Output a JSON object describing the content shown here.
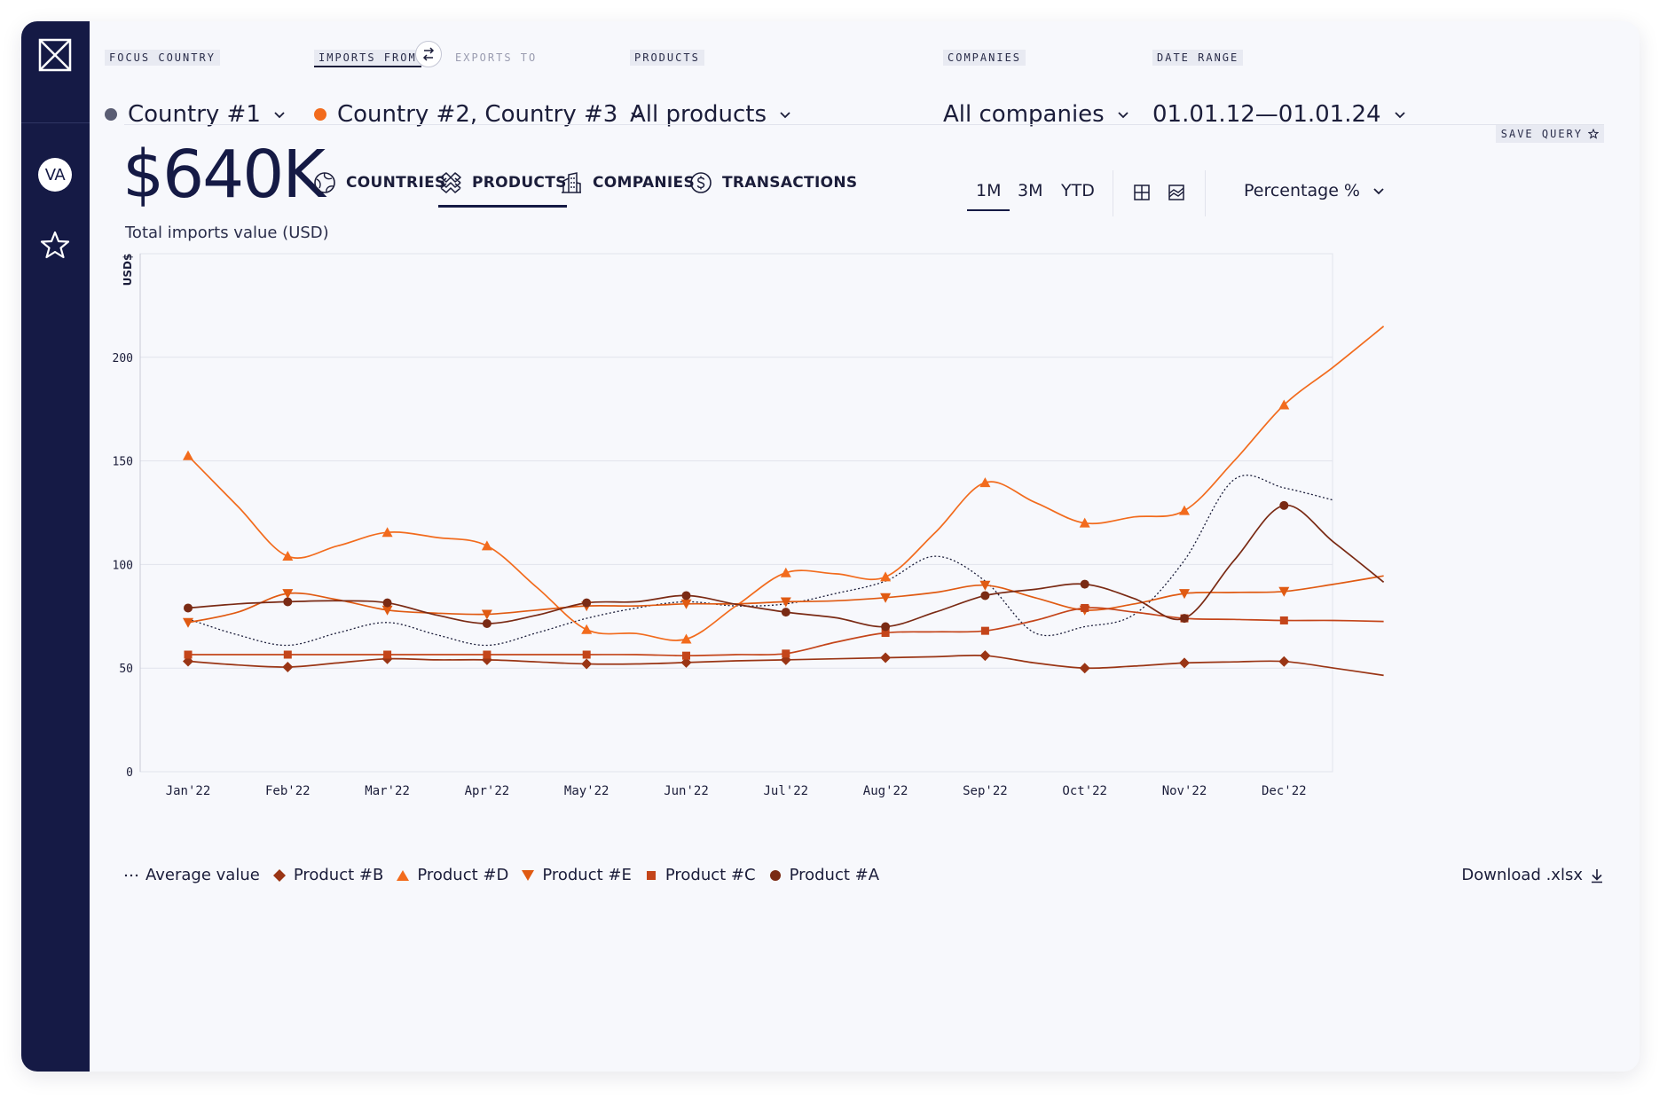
{
  "sidebar": {
    "avatar_initials": "VA",
    "logo_icon": "x-box-logo-icon",
    "favorites_icon": "star-icon"
  },
  "filters": {
    "focus_country": {
      "label": "FOCUS COUNTRY",
      "value": "Country #1",
      "dot_color": "#5a5d73"
    },
    "imports_from": {
      "label": "IMPORTS FROM",
      "value": "Country #2, Country #3",
      "dot_color": "#f26b1d"
    },
    "exports_to": {
      "label": "EXPORTS TO"
    },
    "products": {
      "label": "PRODUCTS",
      "value": "All products"
    },
    "companies": {
      "label": "COMPANIES",
      "value": "All companies"
    },
    "date_range": {
      "label": "DATE RANGE",
      "value": "01.01.12—01.01.24"
    }
  },
  "save_query": "SAVE QUERY",
  "summary": {
    "value": "$640K",
    "caption": "Total imports value (USD)"
  },
  "tabs": [
    {
      "label": "COUNTRIES",
      "icon": "globe-icon"
    },
    {
      "label": "PRODUCTS",
      "icon": "layers-icon",
      "active": true
    },
    {
      "label": "COMPANIES",
      "icon": "building-icon"
    },
    {
      "label": "TRANSACTIONS",
      "icon": "dollar-circle-icon"
    }
  ],
  "ranges": [
    "1M",
    "3M",
    "YTD"
  ],
  "active_range": "1M",
  "view_icons": [
    "table-view-icon",
    "area-chart-view-icon"
  ],
  "unit_select": "Percentage %",
  "download": "Download .xlsx",
  "colors": {
    "accent": "#f26b1d",
    "navy": "#151a45",
    "product_a": "#7a2a14",
    "product_b": "#9a3515",
    "product_c": "#c4451a",
    "product_d": "#f26b1d",
    "product_e": "#e05a12",
    "average": "#1b1d3a"
  },
  "chart_data": {
    "type": "line",
    "ylabel": "USD$",
    "ylim": [
      0,
      250
    ],
    "yticks": [
      0,
      50,
      100,
      150,
      200
    ],
    "grid": true,
    "legend_position": "bottom-left",
    "categories": [
      "Jan'22",
      "Feb'22",
      "Mar'22",
      "Apr'22",
      "May'22",
      "Jun'22",
      "Jul'22",
      "Aug'22",
      "Sep'22",
      "Oct'22",
      "Nov'22",
      "Dec'22"
    ],
    "series": [
      {
        "name": "Average value",
        "style": "dotted",
        "marker": "none",
        "color": "#1b1d3a",
        "points": [
          [
            0,
            73.7
          ],
          [
            0.5,
            66
          ],
          [
            1,
            61
          ],
          [
            1.5,
            67
          ],
          [
            2,
            72
          ],
          [
            2.5,
            66
          ],
          [
            3,
            61
          ],
          [
            3.5,
            67
          ],
          [
            4,
            74
          ],
          [
            4.5,
            79
          ],
          [
            5,
            82
          ],
          [
            5.5,
            80
          ],
          [
            6,
            81
          ],
          [
            6.5,
            86
          ],
          [
            7,
            92
          ],
          [
            7.5,
            104
          ],
          [
            8,
            92
          ],
          [
            8.5,
            67
          ],
          [
            9,
            70
          ],
          [
            9.5,
            76
          ],
          [
            10,
            102
          ],
          [
            10.5,
            141
          ],
          [
            11,
            137
          ],
          [
            11.5,
            131
          ]
        ]
      },
      {
        "name": "Product #B",
        "marker": "diamond",
        "color": "#9a3515",
        "points": [
          [
            0,
            53.3
          ],
          [
            0.5,
            51.5
          ],
          [
            1,
            50.5
          ],
          [
            1.5,
            52.5
          ],
          [
            2,
            54.5
          ],
          [
            2.5,
            54
          ],
          [
            3,
            54
          ],
          [
            3.5,
            53
          ],
          [
            4,
            52
          ],
          [
            4.5,
            52
          ],
          [
            5,
            52.7
          ],
          [
            5.5,
            53.5
          ],
          [
            6,
            54
          ],
          [
            6.5,
            54.5
          ],
          [
            7,
            55
          ],
          [
            7.5,
            55.5
          ],
          [
            8,
            56
          ],
          [
            8.5,
            52.5
          ],
          [
            9,
            50
          ],
          [
            9.5,
            51
          ],
          [
            10,
            52.5
          ],
          [
            10.5,
            53
          ],
          [
            11,
            53.2
          ],
          [
            11.5,
            50
          ],
          [
            12,
            46.5
          ]
        ]
      },
      {
        "name": "Product #D",
        "marker": "triangle-up",
        "color": "#f26b1d",
        "points": [
          [
            0,
            152.5
          ],
          [
            0.5,
            128
          ],
          [
            1,
            104
          ],
          [
            1.5,
            109
          ],
          [
            2,
            115.5
          ],
          [
            2.5,
            113
          ],
          [
            3,
            109
          ],
          [
            3.5,
            89
          ],
          [
            4,
            68.6
          ],
          [
            4.5,
            66.7
          ],
          [
            5,
            64
          ],
          [
            5.5,
            80
          ],
          [
            6,
            96
          ],
          [
            6.5,
            95.5
          ],
          [
            7,
            94
          ],
          [
            7.5,
            115.5
          ],
          [
            8,
            139.5
          ],
          [
            8.5,
            130
          ],
          [
            9,
            120
          ],
          [
            9.5,
            123
          ],
          [
            10,
            126
          ],
          [
            10.5,
            150
          ],
          [
            11,
            177
          ],
          [
            11.5,
            195.5
          ],
          [
            12,
            215
          ]
        ]
      },
      {
        "name": "Product #E",
        "marker": "triangle-down",
        "color": "#e05a12",
        "points": [
          [
            0,
            72
          ],
          [
            0.5,
            77
          ],
          [
            1,
            86
          ],
          [
            1.5,
            83
          ],
          [
            2,
            78
          ],
          [
            2.5,
            76.5
          ],
          [
            3,
            76
          ],
          [
            3.5,
            78
          ],
          [
            4,
            80
          ],
          [
            4.5,
            80
          ],
          [
            5,
            81
          ],
          [
            5.5,
            81
          ],
          [
            6,
            82
          ],
          [
            6.5,
            82.5
          ],
          [
            7,
            84
          ],
          [
            7.5,
            86.5
          ],
          [
            8,
            90
          ],
          [
            8.5,
            84
          ],
          [
            9,
            78
          ],
          [
            9.5,
            81
          ],
          [
            10,
            86
          ],
          [
            10.5,
            86.5
          ],
          [
            11,
            87
          ],
          [
            11.5,
            90.5
          ],
          [
            12,
            94.5
          ]
        ]
      },
      {
        "name": "Product #C",
        "marker": "square",
        "color": "#c4451a",
        "points": [
          [
            0,
            56.5
          ],
          [
            0.5,
            56.5
          ],
          [
            1,
            56.5
          ],
          [
            1.5,
            56.5
          ],
          [
            2,
            56.5
          ],
          [
            2.5,
            56.5
          ],
          [
            3,
            56.5
          ],
          [
            3.5,
            56.5
          ],
          [
            4,
            56.5
          ],
          [
            4.5,
            56.5
          ],
          [
            5,
            56
          ],
          [
            5.5,
            56.5
          ],
          [
            6,
            57
          ],
          [
            6.5,
            62.5
          ],
          [
            7,
            67
          ],
          [
            7.5,
            67.5
          ],
          [
            8,
            68
          ],
          [
            8.5,
            73
          ],
          [
            9,
            79
          ],
          [
            9.5,
            77
          ],
          [
            10,
            74
          ],
          [
            10.5,
            73.5
          ],
          [
            11,
            73
          ],
          [
            11.5,
            73
          ],
          [
            12,
            72.5
          ]
        ]
      },
      {
        "name": "Product #A",
        "marker": "circle",
        "color": "#7a2a14",
        "points": [
          [
            0,
            79
          ],
          [
            0.5,
            81
          ],
          [
            1,
            82
          ],
          [
            1.5,
            82.5
          ],
          [
            2,
            81.5
          ],
          [
            2.5,
            75.5
          ],
          [
            3,
            71.5
          ],
          [
            3.5,
            75.5
          ],
          [
            4,
            81.5
          ],
          [
            4.5,
            82
          ],
          [
            5,
            85
          ],
          [
            5.5,
            80.8
          ],
          [
            6,
            77
          ],
          [
            6.5,
            74.3
          ],
          [
            7,
            70
          ],
          [
            7.5,
            77
          ],
          [
            8,
            85
          ],
          [
            8.5,
            88
          ],
          [
            9,
            90.5
          ],
          [
            9.5,
            83.5
          ],
          [
            10,
            74
          ],
          [
            10.5,
            102
          ],
          [
            11,
            128.5
          ],
          [
            11.5,
            110.7
          ],
          [
            12,
            91.5
          ]
        ]
      }
    ]
  }
}
